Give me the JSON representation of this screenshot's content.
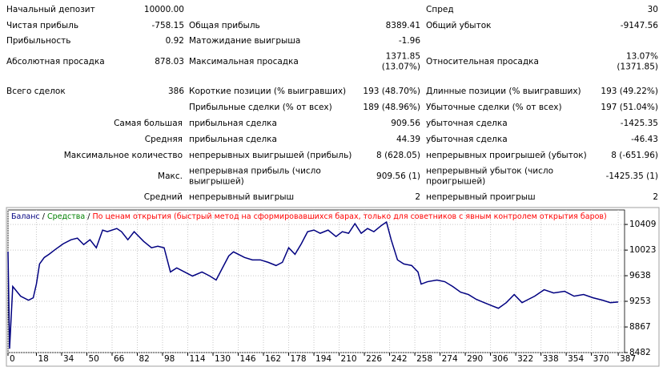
{
  "report": {
    "rows": [
      [
        "Начальный депозит",
        "10000.00",
        null,
        null,
        "Спред",
        "30"
      ],
      [
        "Чистая прибыль",
        "-758.15",
        "Общая прибыль",
        "8389.41",
        "Общий убыток",
        "-9147.56"
      ],
      [
        "Прибыльность",
        "0.92",
        "Матожидание выигрыша",
        "-1.96",
        null,
        null
      ],
      [
        "Абсолютная просадка",
        "878.03",
        "Максимальная просадка",
        [
          "1371.85",
          "(13.07%)"
        ],
        "Относительная просадка",
        [
          "13.07%",
          "(1371.85)"
        ]
      ],
      [
        "Всего сделок",
        "386",
        "Короткие позиции (% выигравших)",
        "193 (48.70%)",
        "Длинные позиции (% выигравших)",
        "193 (49.22%)"
      ],
      [
        null,
        null,
        "Прибыльные сделки (% от всех)",
        "189 (48.96%)",
        "Убыточные сделки (% от всех)",
        "197 (51.04%)"
      ],
      [
        "Самая большая",
        null,
        "прибыльная сделка",
        "909.56",
        "убыточная сделка",
        "-1425.35"
      ],
      [
        "Средняя",
        null,
        "прибыльная сделка",
        "44.39",
        "убыточная сделка",
        "-46.43"
      ],
      [
        "Максимальное количество",
        null,
        "непрерывных выигрышей (прибыль)",
        "8 (628.05)",
        "непрерывных проигрышей (убыток)",
        "8 (-651.96)"
      ],
      [
        "Макс.",
        null,
        [
          "непрерывная прибыль (число",
          "выигрышей)"
        ],
        "909.56 (1)",
        [
          "непрерывный убыток (число",
          "проигрышей)"
        ],
        "-1425.35 (1)"
      ],
      [
        "Средний",
        null,
        "непрерывный выигрыш",
        "2",
        "непрерывный проигрыш",
        "2"
      ]
    ]
  },
  "chart_data": {
    "type": "line",
    "legend_separator": "/",
    "equity_label": "Средства",
    "equity_color": "#008000",
    "mode_note": "По ценам открытия (быстрый метод на сформировавшихся барах, только для советников с явным контролем открытия баров)",
    "note_color": "#ff0000",
    "x": [
      0,
      1,
      3,
      8,
      13,
      16,
      18,
      20,
      23,
      26,
      30,
      35,
      40,
      44,
      48,
      52,
      56,
      60,
      63,
      69,
      72,
      76,
      80,
      86,
      91,
      95,
      99,
      103,
      107,
      112,
      117,
      123,
      128,
      132,
      136,
      140,
      143,
      146,
      150,
      155,
      160,
      165,
      170,
      174,
      178,
      182,
      186,
      190,
      194,
      198,
      203,
      208,
      212,
      216,
      220,
      224,
      228,
      232,
      237,
      240,
      243,
      247,
      251,
      256,
      260,
      262,
      266,
      272,
      277,
      282,
      287,
      292,
      297,
      302,
      307,
      311,
      316,
      321,
      326,
      330,
      334,
      340,
      346,
      353,
      359,
      365,
      371,
      377,
      382,
      387
    ],
    "series": [
      {
        "name": "Баланс",
        "color": "#000080",
        "values": [
          10000,
          8540,
          9476,
          9330,
          9270,
          9306,
          9512,
          9815,
          9912,
          9960,
          10033,
          10118,
          10179,
          10203,
          10106,
          10179,
          10058,
          10324,
          10300,
          10348,
          10300,
          10179,
          10300,
          10155,
          10058,
          10082,
          10058,
          9694,
          9755,
          9694,
          9633,
          9694,
          9633,
          9573,
          9755,
          9936,
          9997,
          9960,
          9912,
          9876,
          9876,
          9839,
          9791,
          9839,
          10058,
          9960,
          10118,
          10300,
          10324,
          10276,
          10324,
          10227,
          10300,
          10276,
          10421,
          10276,
          10348,
          10300,
          10397,
          10445,
          10179,
          9876,
          9815,
          9791,
          9694,
          9512,
          9548,
          9573,
          9548,
          9476,
          9391,
          9355,
          9282,
          9233,
          9185,
          9148,
          9233,
          9355,
          9233,
          9282,
          9330,
          9427,
          9379,
          9403,
          9330,
          9355,
          9306,
          9270,
          9233,
          9242
        ]
      }
    ],
    "xlim": [
      0,
      391
    ],
    "ylim": [
      8482,
      10627
    ],
    "xticks": [
      0,
      18,
      34,
      50,
      66,
      82,
      98,
      114,
      130,
      146,
      162,
      178,
      194,
      210,
      226,
      242,
      258,
      274,
      290,
      306,
      322,
      338,
      354,
      370,
      387
    ],
    "yticks": [
      8482,
      8867,
      9253,
      9638,
      10023,
      10409
    ],
    "grid": true
  }
}
